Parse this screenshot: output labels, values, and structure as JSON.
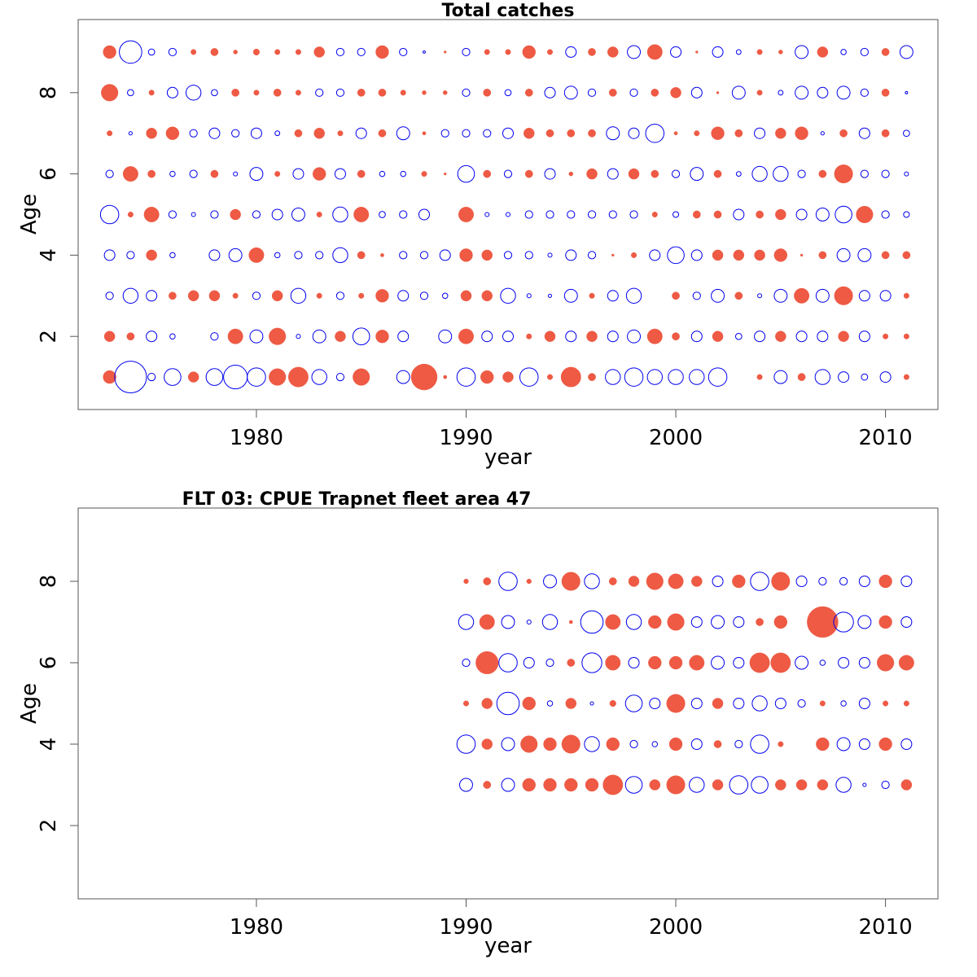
{
  "colors": {
    "positive": "#EE5A44",
    "negative": "#0000EE",
    "frame": "#555555"
  },
  "chart_data": [
    {
      "type": "scatter",
      "subtype": "bubble",
      "title": "Total catches",
      "xlabel": "year",
      "ylabel": "Age",
      "xlim": [
        1971.5,
        2012.5
      ],
      "ylim": [
        0.2,
        9.8
      ],
      "xticks": [
        1980,
        1990,
        2000,
        2010
      ],
      "yticks": [
        2,
        4,
        6,
        8
      ],
      "encoding": "bubble area proportional to |residual|; filled = positive, open = negative",
      "years": [
        1973,
        1974,
        1975,
        1976,
        1977,
        1978,
        1979,
        1980,
        1981,
        1982,
        1983,
        1984,
        1985,
        1986,
        1987,
        1988,
        1989,
        1990,
        1991,
        1992,
        1993,
        1994,
        1995,
        1996,
        1997,
        1998,
        1999,
        2000,
        2001,
        2002,
        2003,
        2004,
        2005,
        2006,
        2007,
        2008,
        2009,
        2010,
        2011
      ],
      "ages": [
        1,
        2,
        3,
        4,
        5,
        6,
        7,
        8,
        9
      ],
      "residuals": {
        "1": [
          3,
          -18,
          -1,
          -5,
          2,
          -5,
          -10,
          -6,
          5,
          7,
          -4,
          -1,
          5,
          0,
          -3,
          12,
          0.2,
          -6,
          3,
          2,
          -6,
          0.5,
          7,
          1,
          -4,
          -6,
          -4,
          -4,
          -4,
          -6,
          0,
          0.5,
          -3,
          1,
          -4,
          -2,
          -0.7,
          -2,
          0.5
        ],
        "2": [
          2,
          1,
          -2,
          -0.5,
          0,
          -1,
          4,
          -3,
          5,
          -0.3,
          -3,
          2,
          -5,
          3,
          -2,
          0,
          -3,
          4,
          -2,
          -2,
          0.5,
          2,
          -2,
          2,
          -2,
          -3,
          4,
          1,
          -2,
          2,
          -0.7,
          -2,
          2,
          -2,
          -2,
          2,
          -2,
          0.5,
          0.5
        ],
        "3": [
          -1,
          -4,
          -2,
          1,
          2,
          2,
          0.5,
          -1,
          2,
          -4,
          0.5,
          -1,
          0.5,
          3,
          -2,
          -1,
          -0.5,
          2,
          2,
          -4,
          -0.3,
          -0.2,
          -3,
          0.5,
          -2,
          -4,
          0,
          1,
          -1,
          -3,
          1,
          -0.3,
          -3,
          4,
          -3,
          6,
          -2,
          -2,
          0.5
        ],
        "4": [
          -2,
          -1,
          2,
          -0.5,
          0,
          -2,
          -3,
          4,
          -0.5,
          -1,
          -1,
          -4,
          1,
          0.2,
          -1,
          -1,
          -2,
          3,
          2,
          -1,
          -1,
          -0.3,
          -2,
          -1,
          0.1,
          0.5,
          -2,
          -5,
          -2,
          2,
          2,
          2,
          3,
          0.1,
          1,
          -3,
          -3,
          1,
          1
        ],
        "5": [
          -6,
          0.5,
          4,
          -1,
          -0.3,
          -1,
          2,
          -1,
          -2,
          -3,
          0.5,
          -4,
          4,
          -0.7,
          -1,
          -2,
          0,
          4,
          -0.3,
          -0.3,
          -1,
          -1,
          -1,
          -1,
          -1,
          -1,
          0.5,
          -0.6,
          1,
          1,
          -2,
          1,
          2,
          -2,
          -3,
          -5,
          5,
          -1,
          -0.6
        ],
        "6": [
          -1,
          4,
          1,
          -0.5,
          -1,
          1,
          -0.3,
          -3,
          0.5,
          -2,
          3,
          -2,
          1,
          -0.5,
          -0.5,
          0.5,
          0.1,
          -5,
          1,
          -1,
          1,
          -2,
          0.3,
          2,
          -2,
          2,
          1,
          -1,
          -3,
          1,
          -0.4,
          -4,
          -4,
          -1,
          1,
          6,
          -1,
          -1,
          -0.3
        ],
        "7": [
          0.5,
          -0.2,
          2,
          3,
          -1,
          -2,
          -1,
          -2,
          -0.4,
          1,
          2,
          0.5,
          -2,
          1,
          -3,
          0.2,
          -1,
          -1,
          -1,
          -2,
          2,
          1,
          1,
          1,
          -3,
          -2,
          -6,
          0.2,
          0.5,
          3,
          1,
          -2,
          2,
          3,
          -0.2,
          1,
          -2,
          1,
          -0.7
        ],
        "8": [
          5,
          -0.7,
          0.5,
          -2,
          -4,
          -0.7,
          1,
          0.5,
          1,
          0.5,
          -1,
          -1,
          1,
          1,
          0.5,
          0.3,
          0.3,
          -1,
          1,
          -0.7,
          1,
          -2,
          -3,
          -1,
          1,
          -1,
          1,
          2,
          -2,
          0.1,
          -3,
          0.5,
          -0.4,
          -3,
          -2,
          -3,
          -1,
          1,
          -0.1
        ],
        "9": [
          3,
          -9,
          -0.7,
          -1,
          0.5,
          1,
          0.3,
          0.7,
          0.5,
          0.5,
          2,
          -1,
          -1,
          3,
          -1,
          -0.1,
          0.1,
          -1,
          0.5,
          0.5,
          3,
          0.5,
          -2,
          1,
          2,
          -3,
          4,
          -2,
          0.1,
          -2,
          -0.4,
          0.5,
          0.3,
          -3,
          2,
          -0.5,
          -1,
          1,
          -3
        ]
      }
    },
    {
      "type": "scatter",
      "subtype": "bubble",
      "title": "FLT 03: CPUE Trapnet fleet area 47",
      "xlabel": "year",
      "ylabel": "Age",
      "xlim": [
        1971.5,
        2012.5
      ],
      "ylim": [
        0.2,
        9.8
      ],
      "xticks": [
        1980,
        1990,
        2000,
        2010
      ],
      "yticks": [
        2,
        4,
        6,
        8
      ],
      "encoding": "bubble area proportional to |residual|; filled = positive, open = negative",
      "years": [
        1990,
        1991,
        1992,
        1993,
        1994,
        1995,
        1996,
        1997,
        1998,
        1999,
        2000,
        2001,
        2002,
        2003,
        2004,
        2005,
        2006,
        2007,
        2008,
        2009,
        2010,
        2011
      ],
      "ages": [
        3,
        4,
        5,
        6,
        7,
        8
      ],
      "residuals": {
        "3": [
          -3,
          1,
          -3,
          3,
          3,
          3,
          3,
          7,
          -5,
          2,
          6,
          -4,
          2,
          -6,
          -5,
          2,
          2,
          2,
          -4,
          -0.2,
          -1,
          2
        ],
        "4": [
          -6,
          2,
          -3,
          5,
          3,
          6,
          -4,
          3,
          -1,
          -0.5,
          3,
          -2,
          1,
          -1,
          -6,
          0.5,
          0,
          3,
          -3,
          -2,
          3,
          -2
        ],
        "5": [
          0.5,
          2,
          -9,
          3,
          -0.5,
          2,
          -0.2,
          0.7,
          -5,
          -2,
          6,
          -2,
          2,
          -2,
          -4,
          -2,
          -1,
          0.5,
          -0.5,
          -2,
          0.5,
          0.5
        ],
        "6": [
          -1,
          9,
          -6,
          -2,
          -1,
          1,
          -7,
          4,
          -2,
          3,
          3,
          4,
          -3,
          -2,
          7,
          7,
          -3,
          -0.5,
          -2,
          -2,
          5,
          4
        ],
        "7": [
          -4,
          4,
          -3,
          -0.3,
          -4,
          0.2,
          -9,
          4,
          -4,
          3,
          5,
          -2,
          -3,
          -2,
          1,
          3,
          0,
          17,
          -7,
          -3,
          3,
          -2
        ],
        "8": [
          0.4,
          1,
          -6,
          0.4,
          -3,
          6,
          -4,
          1,
          2,
          5,
          4,
          2,
          -2,
          3,
          -6,
          6,
          -2,
          -1,
          -1,
          -2,
          3,
          -2
        ]
      }
    }
  ]
}
